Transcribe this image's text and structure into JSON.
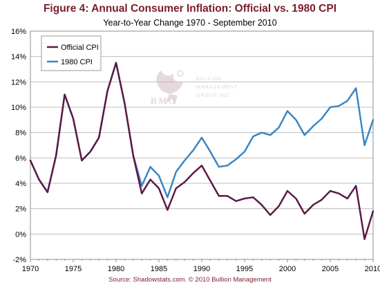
{
  "title": "Figure 4: Annual Consumer Inflation: Official vs. 1980 CPI",
  "subtitle": "Year-to-Year Change 1970 - September 2010",
  "source": "Source: Shadowstats.com. © 2010 Bullion Management",
  "watermark": {
    "logo_text": "BMG",
    "side_lines": [
      "BULLION",
      "MANAGEMENT",
      "GROUP INC"
    ]
  },
  "colors": {
    "official": "#5b1a46",
    "cpi1980": "#3a86c3",
    "grid": "#bdbdbd",
    "title": "#7b1c2b"
  },
  "chart_data": {
    "type": "line",
    "title": "Figure 4: Annual Consumer Inflation: Official vs. 1980 CPI",
    "subtitle": "Year-to-Year Change 1970 - September 2010",
    "xlabel": "",
    "ylabel": "",
    "xlim": [
      1970,
      2010
    ],
    "ylim": [
      -2,
      16
    ],
    "x_ticks": [
      1970,
      1975,
      1980,
      1985,
      1990,
      1995,
      2000,
      2005,
      2010
    ],
    "y_ticks": [
      -2,
      0,
      2,
      4,
      6,
      8,
      10,
      12,
      14,
      16
    ],
    "y_tick_labels": [
      "-2%",
      "0%",
      "2%",
      "4%",
      "6%",
      "8%",
      "10%",
      "12%",
      "14%",
      "16%"
    ],
    "grid": "horizontal",
    "legend_position": "top-left",
    "series": [
      {
        "name": "Official CPI",
        "x": [
          1970,
          1971,
          1972,
          1973,
          1974,
          1975,
          1976,
          1977,
          1978,
          1979,
          1980,
          1981,
          1982,
          1983,
          1984,
          1985,
          1986,
          1987,
          1988,
          1989,
          1990,
          1991,
          1992,
          1993,
          1994,
          1995,
          1996,
          1997,
          1998,
          1999,
          2000,
          2001,
          2002,
          2003,
          2004,
          2005,
          2006,
          2007,
          2008,
          2009,
          2010
        ],
        "values": [
          5.8,
          4.3,
          3.3,
          6.2,
          11.0,
          9.1,
          5.8,
          6.5,
          7.6,
          11.3,
          13.5,
          10.3,
          6.2,
          3.2,
          4.3,
          3.6,
          1.9,
          3.6,
          4.1,
          4.8,
          5.4,
          4.2,
          3.0,
          3.0,
          2.6,
          2.8,
          2.9,
          2.3,
          1.5,
          2.2,
          3.4,
          2.8,
          1.6,
          2.3,
          2.7,
          3.4,
          3.2,
          2.8,
          3.8,
          -0.4,
          1.8
        ]
      },
      {
        "name": "1980 CPI",
        "x": [
          1970,
          1971,
          1972,
          1973,
          1974,
          1975,
          1976,
          1977,
          1978,
          1979,
          1980,
          1981,
          1982,
          1983,
          1984,
          1985,
          1986,
          1987,
          1988,
          1989,
          1990,
          1991,
          1992,
          1993,
          1994,
          1995,
          1996,
          1997,
          1998,
          1999,
          2000,
          2001,
          2002,
          2003,
          2004,
          2005,
          2006,
          2007,
          2008,
          2009,
          2010
        ],
        "values": [
          5.8,
          4.3,
          3.3,
          6.2,
          11.0,
          9.1,
          5.8,
          6.5,
          7.6,
          11.3,
          13.5,
          10.3,
          6.2,
          3.8,
          5.3,
          4.6,
          2.9,
          4.9,
          5.8,
          6.6,
          7.6,
          6.5,
          5.3,
          5.4,
          5.9,
          6.5,
          7.7,
          8.0,
          7.8,
          8.4,
          9.7,
          9.0,
          7.8,
          8.5,
          9.1,
          10.0,
          10.1,
          10.5,
          11.5,
          7.0,
          9.0
        ]
      }
    ]
  }
}
